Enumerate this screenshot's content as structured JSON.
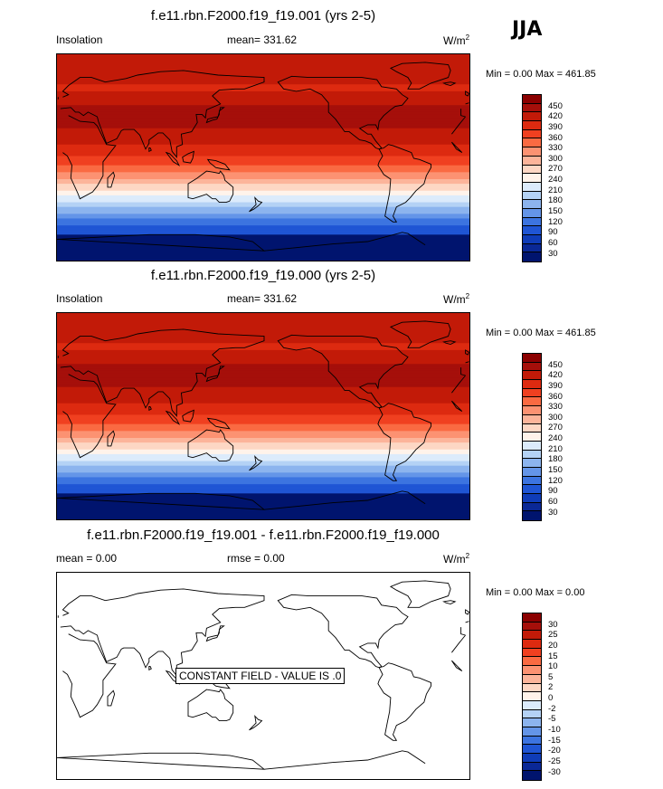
{
  "season": "JJA",
  "panels": [
    {
      "title": "f.e11.rbn.F2000.f19_f19.001 (yrs 2-5)",
      "left_label": "Insolation",
      "center_label": "mean= 331.62",
      "units_base": "W/m",
      "units_sup": "2",
      "minmax": "Min =   0.00 Max = 461.85",
      "colorbar_labels": [
        "450",
        "420",
        "390",
        "360",
        "330",
        "300",
        "270",
        "240",
        "210",
        "180",
        "150",
        "120",
        "90",
        "60",
        "30"
      ]
    },
    {
      "title": "f.e11.rbn.F2000.f19_f19.000 (yrs 2-5)",
      "left_label": "Insolation",
      "center_label": "mean= 331.62",
      "units_base": "W/m",
      "units_sup": "2",
      "minmax": "Min =   0.00 Max = 461.85",
      "colorbar_labels": [
        "450",
        "420",
        "390",
        "360",
        "330",
        "300",
        "270",
        "240",
        "210",
        "180",
        "150",
        "120",
        "90",
        "60",
        "30"
      ]
    },
    {
      "title": "f.e11.rbn.F2000.f19_f19.001 - f.e11.rbn.F2000.f19_f19.000",
      "left_label": "mean =   0.00",
      "center_label": "rmse =   0.00",
      "units_base": "W/m",
      "units_sup": "2",
      "minmax": "Min =   0.00 Max =   0.00",
      "constant_label": "CONSTANT FIELD - VALUE IS .0",
      "colorbar_labels": [
        "30",
        "25",
        "20",
        "15",
        "10",
        "5",
        "2",
        "0",
        "-2",
        "-5",
        "-10",
        "-15",
        "-20",
        "-25",
        "-30"
      ]
    }
  ],
  "colorbar_colors": [
    "#8b0000",
    "#a50f0a",
    "#c21a08",
    "#dd2a10",
    "#f04020",
    "#fa6a42",
    "#fc9272",
    "#fcb49a",
    "#fdd7c4",
    "#fff3ea",
    "#dcebfb",
    "#b4d2f5",
    "#8cb4ee",
    "#6495e8",
    "#3c74e0",
    "#1f55d4",
    "#0f3cb8",
    "#0a2896",
    "#00146e"
  ],
  "insolation_lat_profile": [
    {
      "lat": 90,
      "value": 445
    },
    {
      "lat": 80,
      "value": 440
    },
    {
      "lat": 70,
      "value": 425
    },
    {
      "lat": 60,
      "value": 415
    },
    {
      "lat": 50,
      "value": 440
    },
    {
      "lat": 40,
      "value": 460
    },
    {
      "lat": 30,
      "value": 455
    },
    {
      "lat": 20,
      "value": 440
    },
    {
      "lat": 10,
      "value": 415
    },
    {
      "lat": 0,
      "value": 385
    },
    {
      "lat": -10,
      "value": 340
    },
    {
      "lat": -20,
      "value": 285
    },
    {
      "lat": -30,
      "value": 225
    },
    {
      "lat": -40,
      "value": 165
    },
    {
      "lat": -50,
      "value": 105
    },
    {
      "lat": -60,
      "value": 50
    },
    {
      "lat": -70,
      "value": 10
    },
    {
      "lat": -80,
      "value": 0
    },
    {
      "lat": -90,
      "value": 0
    }
  ]
}
